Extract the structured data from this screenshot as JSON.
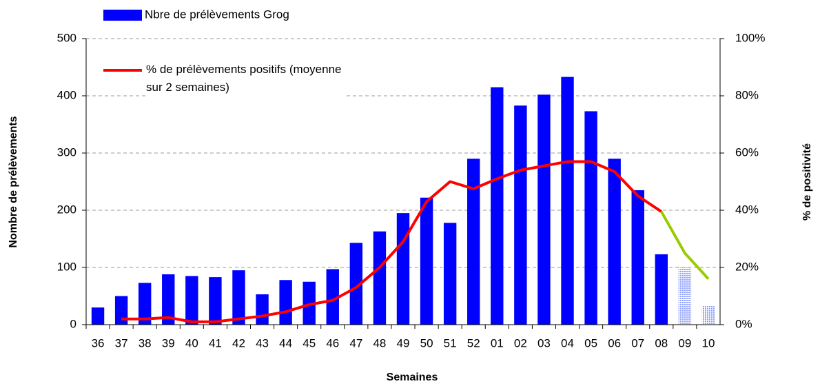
{
  "chart_data": {
    "type": "bar_line",
    "xlabel": "Semaines",
    "ylabel": "Nombre de prélèvements",
    "y2label": "% de positivité",
    "categories": [
      "36",
      "37",
      "38",
      "39",
      "40",
      "41",
      "42",
      "43",
      "44",
      "45",
      "46",
      "47",
      "48",
      "49",
      "50",
      "51",
      "52",
      "01",
      "02",
      "03",
      "04",
      "05",
      "06",
      "07",
      "08",
      "09",
      "10"
    ],
    "series": [
      {
        "name": "Nbre de prélèvements Grog",
        "type": "bar",
        "color": "#0000ff",
        "values": [
          30,
          50,
          73,
          88,
          85,
          83,
          95,
          53,
          78,
          75,
          97,
          143,
          163,
          195,
          222,
          178,
          290,
          415,
          383,
          402,
          433,
          373,
          290,
          235,
          123,
          null,
          null
        ]
      },
      {
        "type": "bar",
        "color": "#8fa0ff",
        "pattern": "dotted",
        "values": [
          null,
          null,
          null,
          null,
          null,
          null,
          null,
          null,
          null,
          null,
          null,
          null,
          null,
          null,
          null,
          null,
          null,
          null,
          null,
          null,
          null,
          null,
          null,
          null,
          null,
          100,
          33
        ]
      },
      {
        "name": "% de prélèvements positifs (moyenne sur 2 semaines)",
        "type": "line",
        "axis": "y2",
        "color": "#ff0000",
        "values": [
          null,
          2,
          2,
          2.5,
          1,
          1,
          2,
          3,
          4.5,
          7,
          8.5,
          13,
          20,
          29,
          43,
          50,
          47.5,
          51,
          54,
          55.5,
          57,
          57,
          53.5,
          45,
          39.5,
          null,
          null
        ]
      },
      {
        "type": "line",
        "axis": "y2",
        "color": "#99cc00",
        "values": [
          null,
          null,
          null,
          null,
          null,
          null,
          null,
          null,
          null,
          null,
          null,
          null,
          null,
          null,
          null,
          null,
          null,
          null,
          null,
          null,
          null,
          null,
          null,
          null,
          39.5,
          25,
          16
        ]
      }
    ],
    "ylim": [
      0,
      500
    ],
    "yticks": [
      0,
      100,
      200,
      300,
      400,
      500
    ],
    "y2lim": [
      0,
      100
    ],
    "y2ticks": [
      {
        "value": 0,
        "label": "0%"
      },
      {
        "value": 20,
        "label": "20%"
      },
      {
        "value": 40,
        "label": "40%"
      },
      {
        "value": 60,
        "label": "60%"
      },
      {
        "value": 80,
        "label": "80%"
      },
      {
        "value": 100,
        "label": "100%"
      }
    ],
    "grid": true
  }
}
